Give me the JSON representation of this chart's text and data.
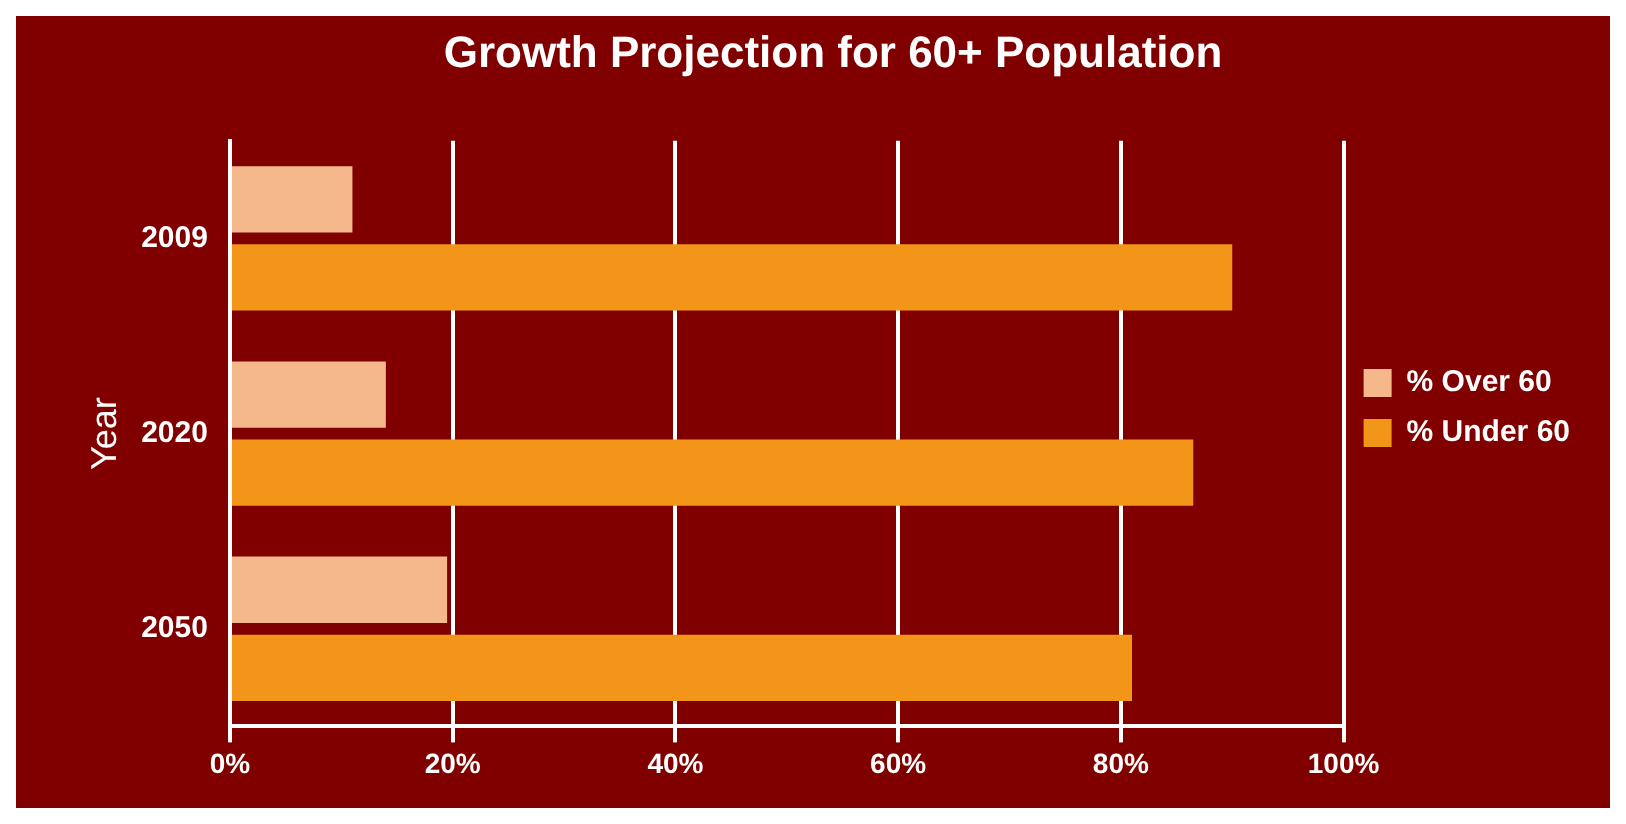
{
  "chart_data": {
    "type": "bar",
    "orientation": "horizontal",
    "title": "Growth Projection for 60+ Population",
    "ylabel": "Year",
    "categories": [
      "2009",
      "2020",
      "2050"
    ],
    "series": [
      {
        "name": "% Over 60",
        "color": "#f5b88a",
        "values": [
          11,
          14,
          19.5
        ]
      },
      {
        "name": "% Under 60",
        "color": "#f39519",
        "values": [
          90,
          86.5,
          81
        ]
      }
    ],
    "xlim": [
      0,
      100
    ],
    "xticks": [
      {
        "value": 0,
        "label": "0%"
      },
      {
        "value": 20,
        "label": "20%"
      },
      {
        "value": 40,
        "label": "40%"
      },
      {
        "value": 60,
        "label": "60%"
      },
      {
        "value": 80,
        "label": "80%"
      },
      {
        "value": 100,
        "label": "100%"
      }
    ],
    "grid": "x",
    "legend": "right"
  }
}
